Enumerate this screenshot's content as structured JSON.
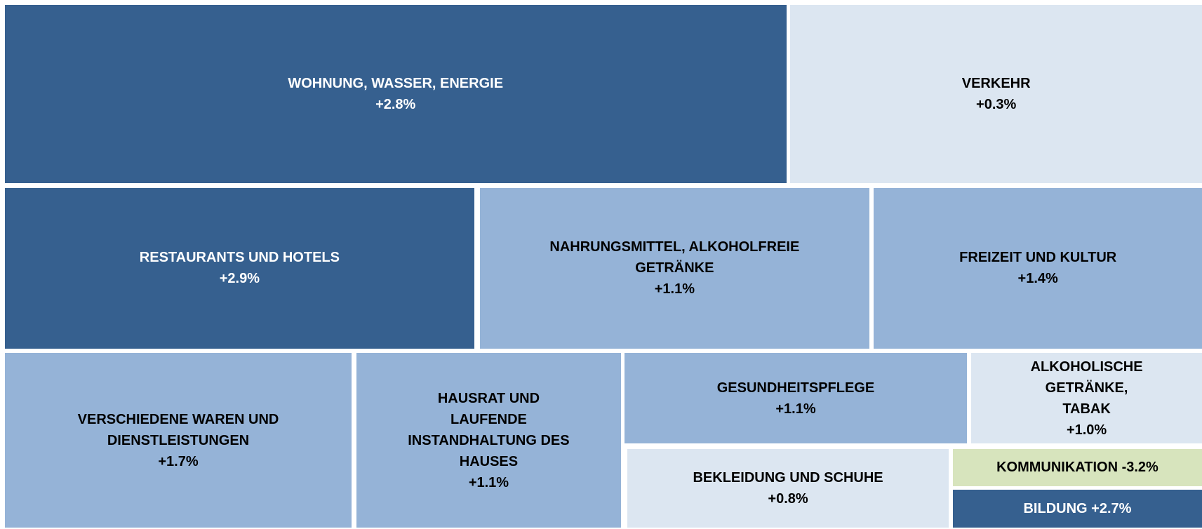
{
  "chart_data": {
    "type": "treemap",
    "categories": [
      "WOHNUNG, WASSER, ENERGIE",
      "VERKEHR",
      "RESTAURANTS UND HOTELS",
      "NAHRUNGSMITTEL, ALKOHOLFREIE GETRÄNKE",
      "FREIZEIT UND KULTUR",
      "VERSCHIEDENE WAREN UND DIENSTLEISTUNGEN",
      "HAUSRAT UND LAUFENDE INSTANDHALTUNG DES HAUSES",
      "GESUNDHEITSPFLEGE",
      "ALKOHOLISCHE GETRÄNKE, TABAK",
      "BEKLEIDUNG UND SCHUHE",
      "KOMMUNIKATION",
      "BILDUNG"
    ],
    "values": [
      2.8,
      0.3,
      2.9,
      1.1,
      1.4,
      1.7,
      1.1,
      1.1,
      1.0,
      0.8,
      -3.2,
      2.7
    ],
    "value_labels": [
      "+2.8%",
      "+0.3%",
      "+2.9%",
      "+1.1%",
      "+1.4%",
      "+1.7%",
      "+1.1%",
      "+1.1%",
      "+1.0%",
      "+0.8%",
      "-3.2%",
      "+2.7%"
    ],
    "colors": [
      "#36608f",
      "#dce6f1",
      "#36608f",
      "#95b3d7",
      "#95b3d7",
      "#95b3d7",
      "#95b3d7",
      "#95b3d7",
      "#dce6f1",
      "#dce6f1",
      "#d7e4bd",
      "#36608f"
    ]
  }
}
